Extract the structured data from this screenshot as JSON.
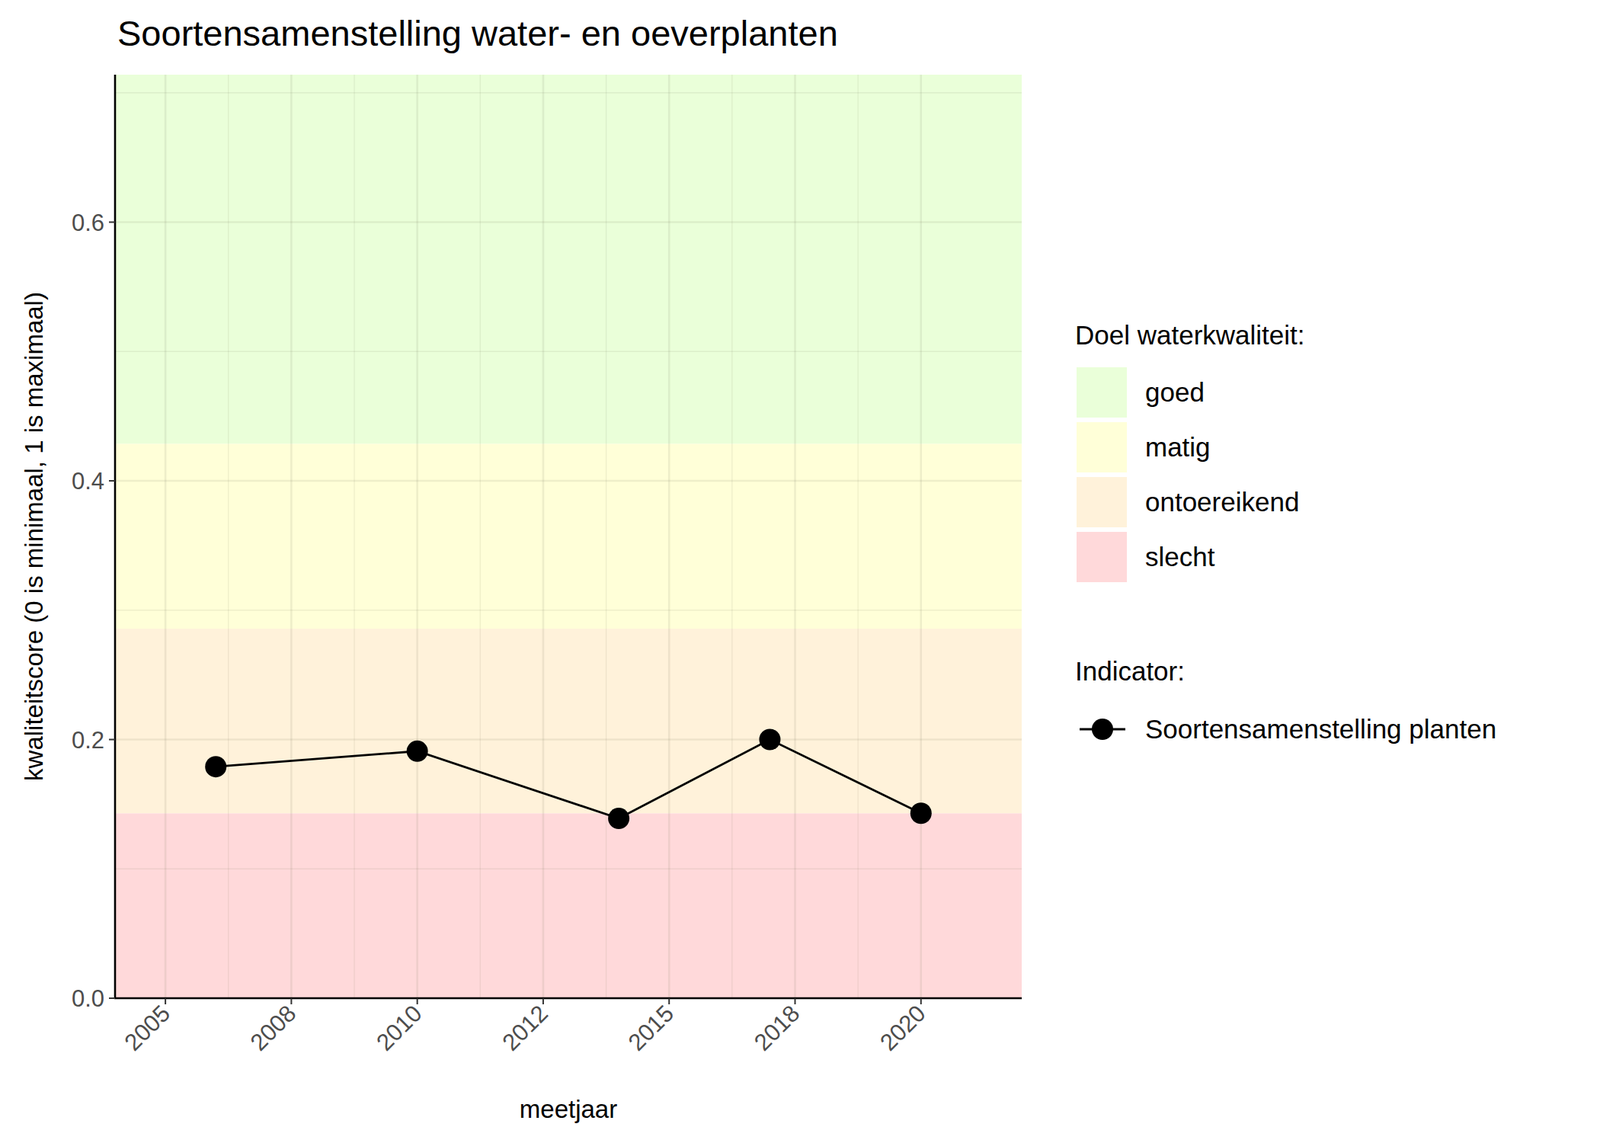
{
  "chart_data": {
    "type": "line",
    "title": "Soortensamenstelling water- en oeverplanten",
    "x_label": "meetjaar",
    "y_label": "kwaliteitscore (0 is minimaal, 1 is maximaal)",
    "x": [
      2006,
      2010,
      2014,
      2017,
      2020
    ],
    "series": [
      {
        "name": "Soortensamenstelling planten",
        "color": "#000000",
        "marker": "circle",
        "line_style": "solid",
        "values": [
          0.179,
          0.191,
          0.139,
          0.2,
          0.143
        ]
      }
    ],
    "xlim": [
      2004,
      2022
    ],
    "xticks": [
      2005,
      {
        "value": 2007.5,
        "label": "2008"
      },
      2010,
      {
        "value": 2012.5,
        "label": "2012"
      },
      2015,
      {
        "value": 2017.5,
        "label": "2018"
      },
      2020
    ],
    "ylim": [
      0,
      0.714
    ],
    "yticks": [
      {
        "value": 0,
        "label": "0.0"
      },
      0.2,
      0.4,
      0.6
    ],
    "bands_title": "Doel waterkwaliteit:",
    "bands": [
      {
        "name": "goed",
        "from": 0.4286,
        "to": 0.714,
        "color": "#eaffd9"
      },
      {
        "name": "matig",
        "from": 0.2857,
        "to": 0.4286,
        "color": "#ffffd8"
      },
      {
        "name": "ontoereikend",
        "from": 0.1429,
        "to": 0.2857,
        "color": "#fff2da"
      },
      {
        "name": "slecht",
        "from": 0,
        "to": 0.1429,
        "color": "#ffd9da"
      }
    ],
    "legend_title": "Indicator:",
    "legend": "right",
    "grid": true
  }
}
